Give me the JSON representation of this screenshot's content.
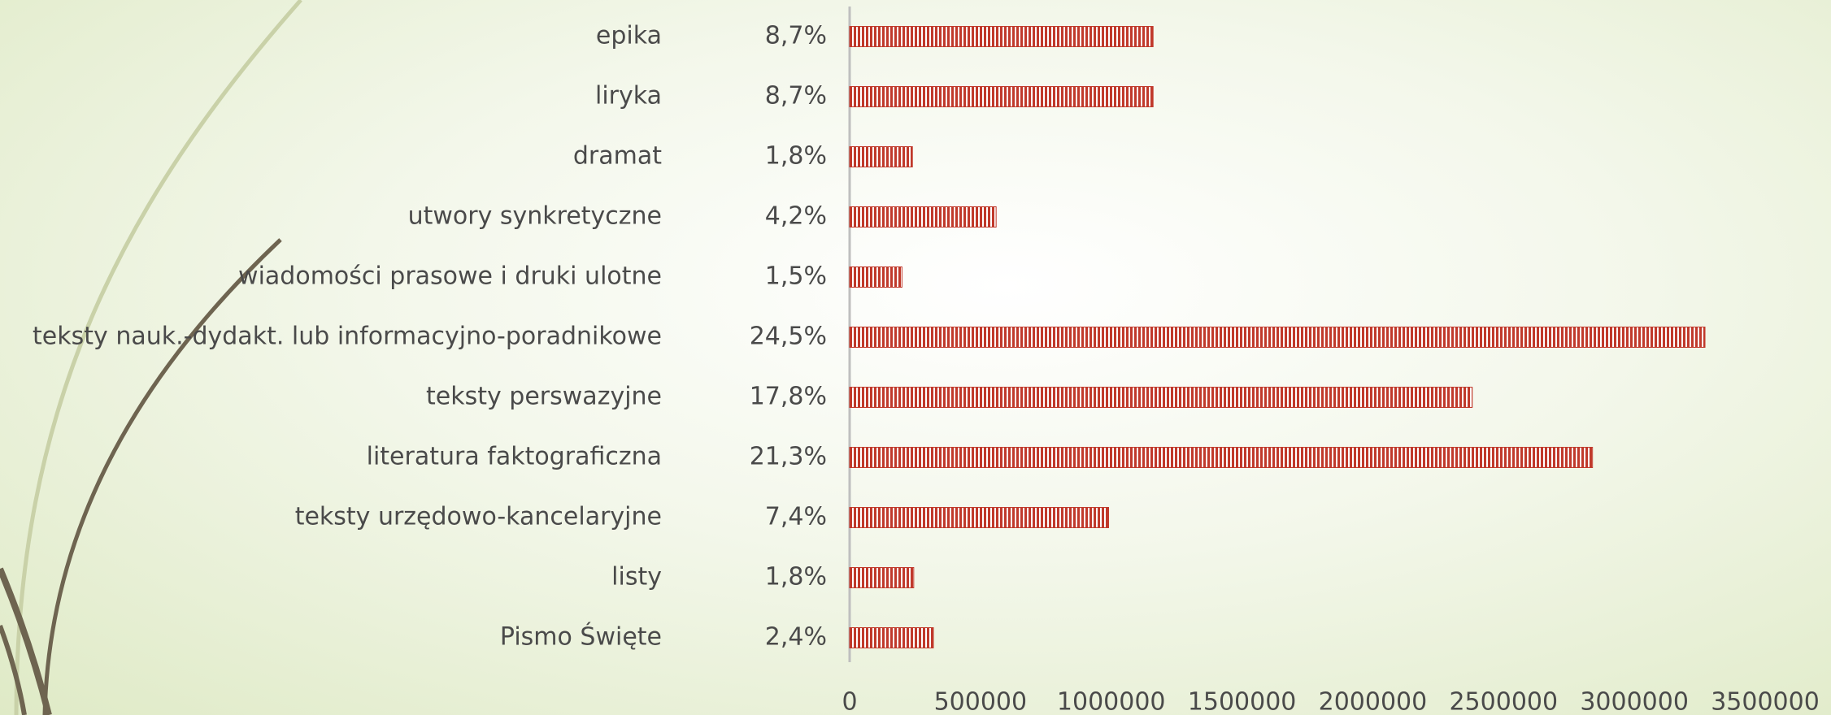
{
  "chart_data": {
    "type": "bar",
    "orientation": "horizontal",
    "categories": [
      "epika",
      "liryka",
      "dramat",
      "utwory synkretyczne",
      "wiadomości prasowe i druki ulotne",
      "teksty nauk.-dydakt. lub informacyjno-poradnikowe",
      "teksty perswazyjne",
      "literatura faktograficzna",
      "teksty urzędowo-kancelaryjne",
      "listy",
      "Pismo Święte"
    ],
    "percent_labels": [
      "8,7%",
      "8,7%",
      "1,8%",
      "4,2%",
      "1,5%",
      "24,5%",
      "17,8%",
      "21,3%",
      "7,4%",
      "1,8%",
      "2,4%"
    ],
    "values": [
      1160000,
      1160000,
      240000,
      560000,
      200000,
      3270000,
      2380000,
      2840000,
      990000,
      245000,
      320000
    ],
    "color": "#c0392b",
    "xlim": [
      0,
      3500000
    ],
    "xticks": [
      0,
      500000,
      1000000,
      1500000,
      2000000,
      2500000,
      3000000,
      3500000
    ]
  }
}
